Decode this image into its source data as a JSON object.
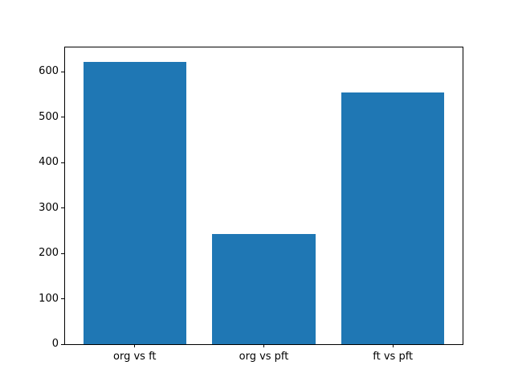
{
  "chart_data": {
    "type": "bar",
    "categories": [
      "org vs ft",
      "org vs pft",
      "ft vs pft"
    ],
    "values": [
      623,
      242,
      554
    ],
    "title": "",
    "xlabel": "",
    "ylabel": "",
    "ylim": [
      0,
      654
    ],
    "yticks": [
      0,
      100,
      200,
      300,
      400,
      500,
      600
    ],
    "bar_color": "#1f77b4",
    "spine_color": "#000000",
    "background_color": "#ffffff",
    "grid": false,
    "legend": false,
    "bar_width_fraction": 0.8
  }
}
